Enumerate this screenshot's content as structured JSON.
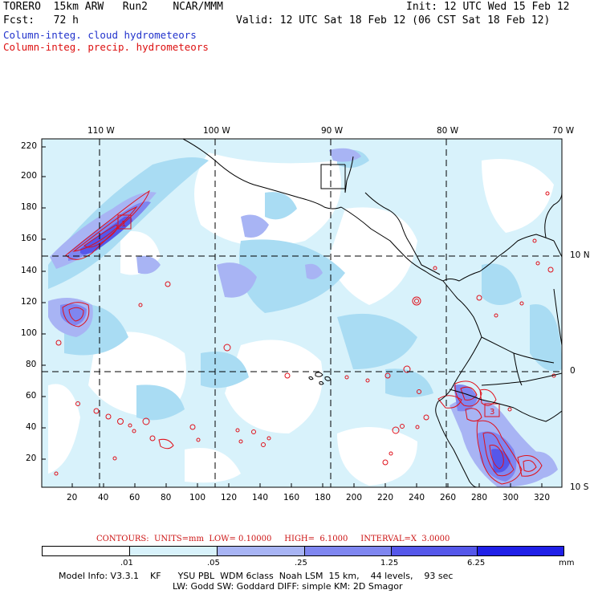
{
  "header": {
    "line1_left": "TORERO  15km ARW   Run2    NCAR/MMM",
    "line1_right": "Init: 12 UTC Wed 15 Feb 12",
    "line2_left": "Fcst:   72 h",
    "line2_right": "Valid: 12 UTC Sat 18 Feb 12 (06 CST Sat 18 Feb 12)",
    "field1": "Column-integ. cloud hydrometeors",
    "field2": "Column-integ. precip. hydrometeors"
  },
  "map": {
    "top_lon_labels": [
      "110 W",
      "100 W",
      "90 W",
      "80 W",
      "70 W"
    ],
    "right_lat_labels": [
      "10 N",
      "0",
      "10 S"
    ],
    "y_ticks": [
      "220",
      "200",
      "180",
      "160",
      "140",
      "120",
      "100",
      "80",
      "60",
      "40",
      "20"
    ],
    "x_ticks": [
      "20",
      "40",
      "60",
      "80",
      "100",
      "120",
      "140",
      "160",
      "180",
      "200",
      "220",
      "240",
      "260",
      "280",
      "300",
      "320"
    ],
    "contour_labels": [
      "1",
      "3"
    ],
    "colors": {
      "level1": "#d8f2fb",
      "level2": "#a9dcf3",
      "level3": "#a8b4f4",
      "level4": "#7f86f0",
      "level5": "#5557ea",
      "level6": "#2020e8",
      "contour": "#e0101a",
      "coast": "#000000"
    }
  },
  "contours_line": {
    "text": "CONTOURS:  UNITS=mm  LOW= 0.10000     HIGH=  6.1000     INTERVAL=X  3.0000"
  },
  "colorbar": {
    "labels": [
      ".01",
      ".05",
      ".25",
      "1.25",
      "6.25"
    ],
    "units": "mm"
  },
  "footer": {
    "line1": "Model Info: V3.3.1    KF      YSU PBL  WDM 6class  Noah LSM  15 km,    44 levels,    93 sec",
    "line2": "LW: Godd SW: Goddard DIFF: simple KM: 2D Smagor"
  }
}
